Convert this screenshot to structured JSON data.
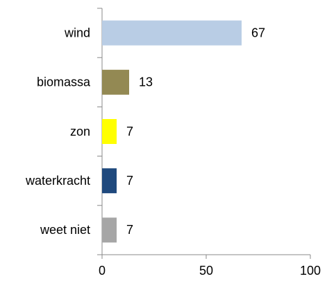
{
  "chart_data": {
    "type": "barh",
    "categories": [
      "wind",
      "biomassa",
      "zon",
      "waterkracht",
      "weet niet"
    ],
    "values": [
      67,
      13,
      7,
      7,
      7
    ],
    "colors": [
      "#b9cde5",
      "#938953",
      "#ffff00",
      "#1f497d",
      "#a6a6a6"
    ],
    "xlim": [
      0,
      100
    ],
    "xticks": [
      0,
      50,
      100
    ]
  }
}
